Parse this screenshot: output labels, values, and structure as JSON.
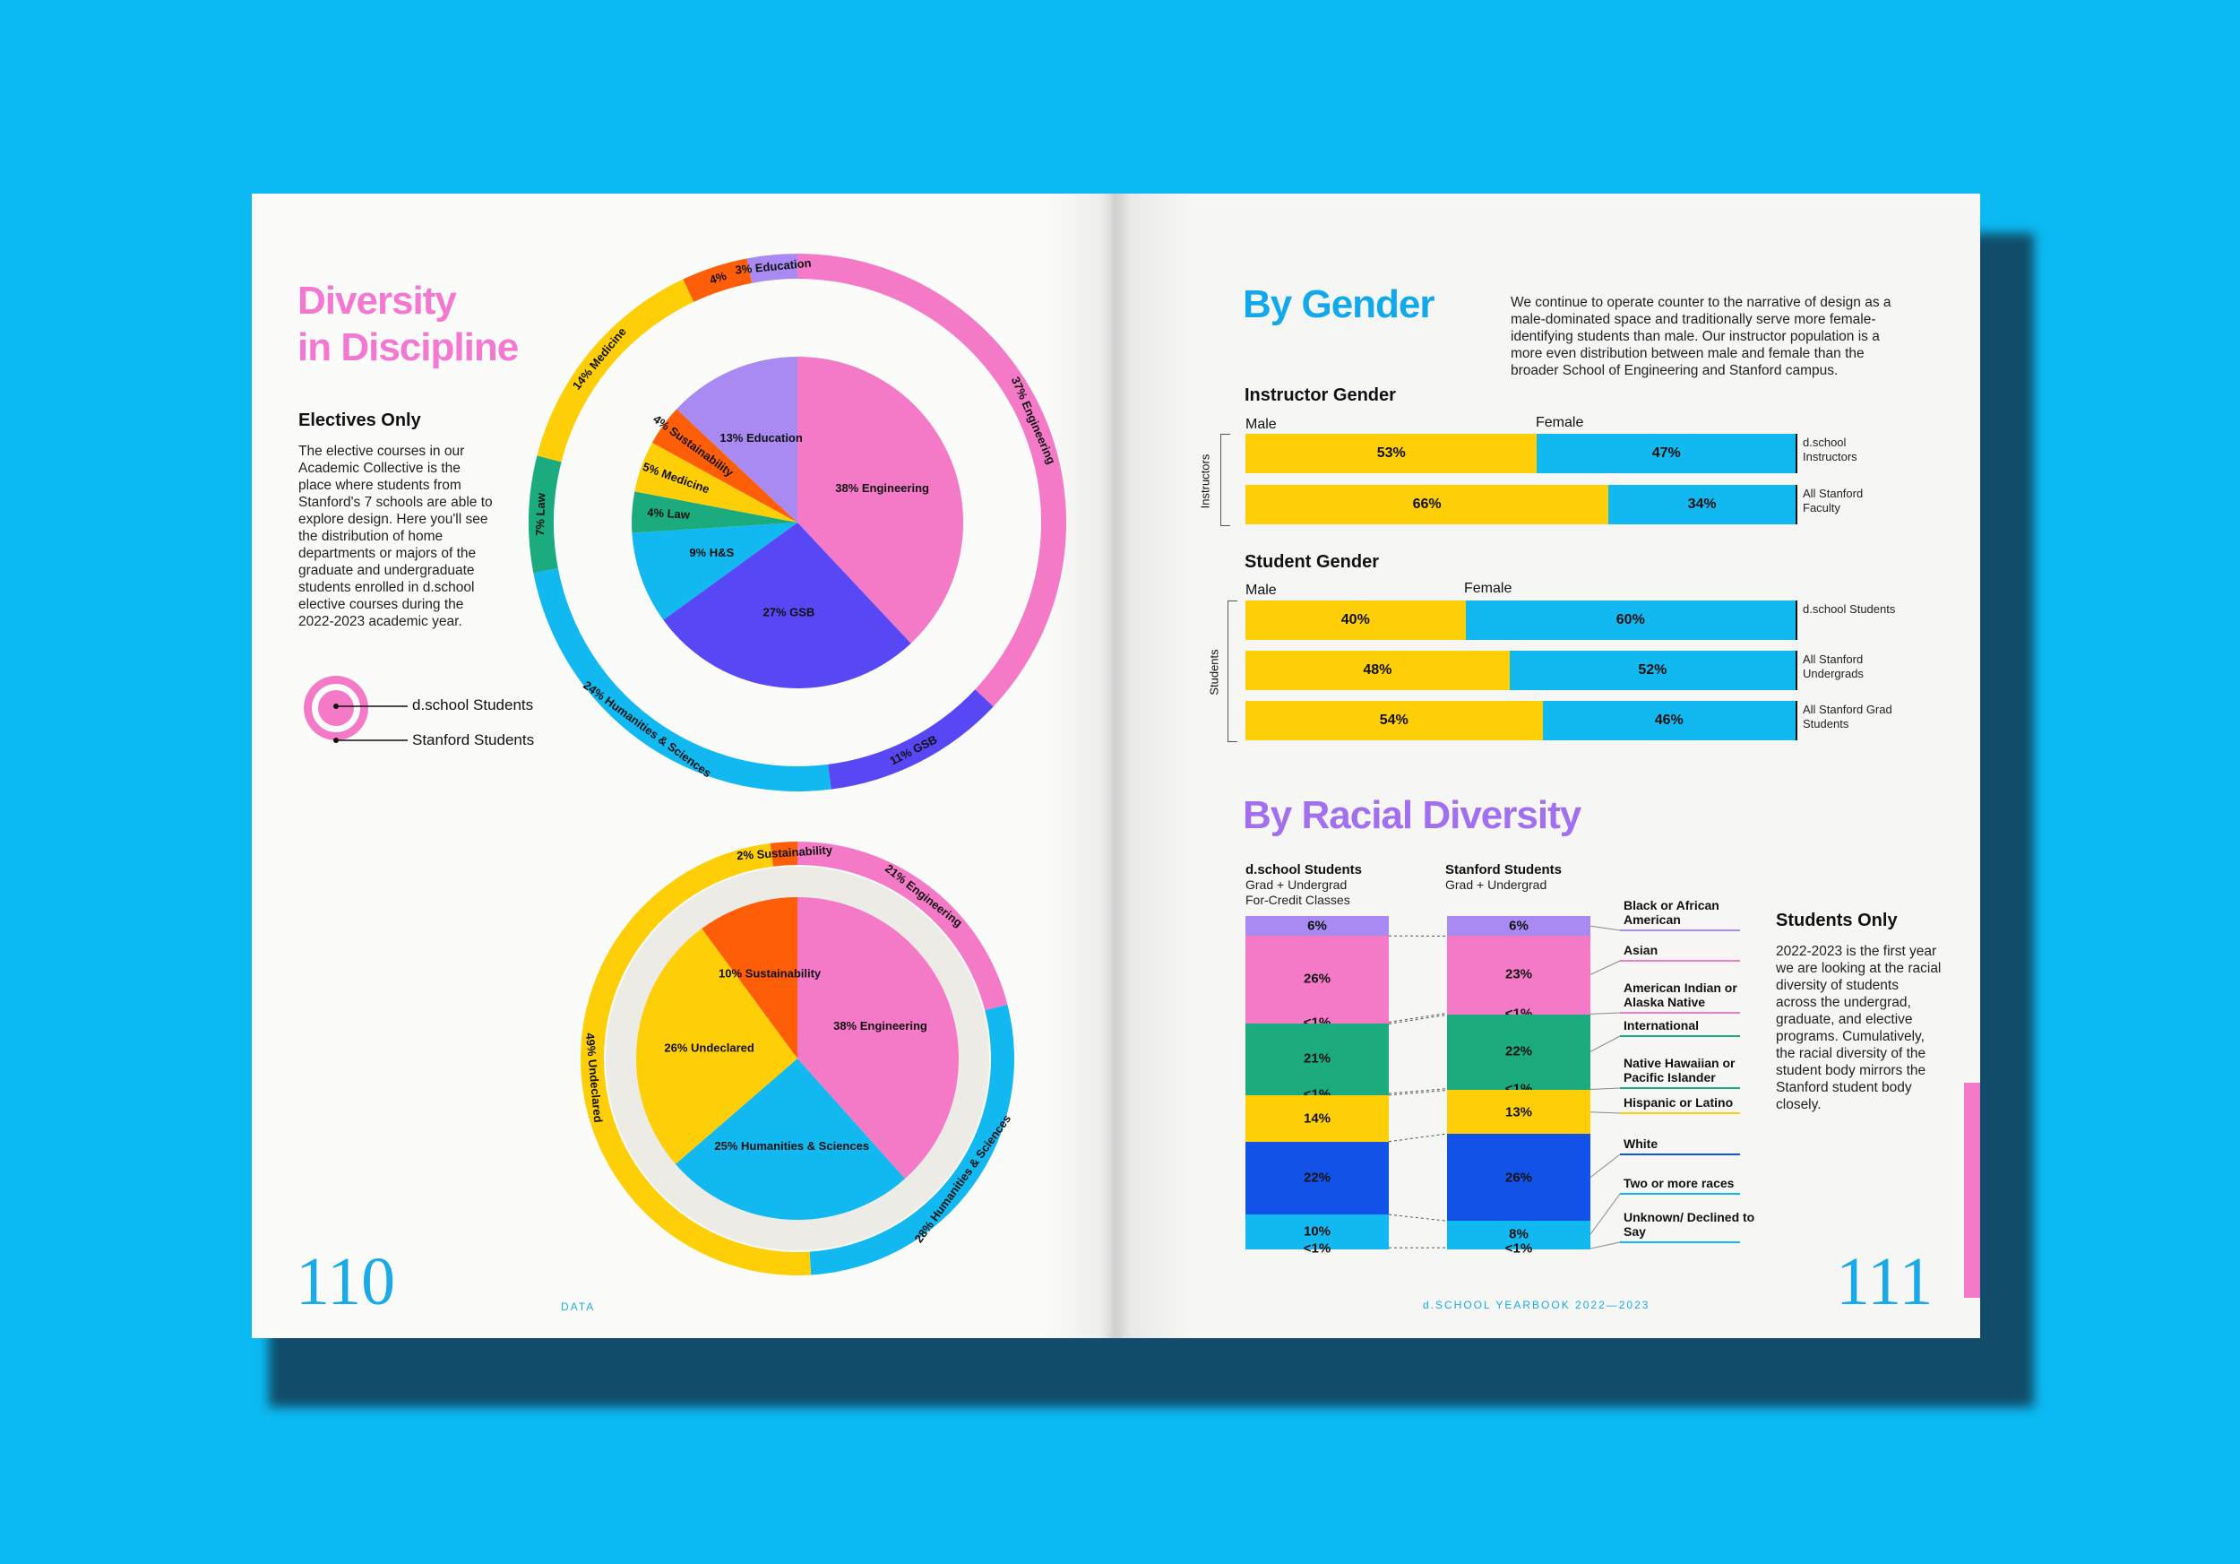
{
  "left_page": {
    "title_line1": "Diversity",
    "title_line2": "in Discipline",
    "subtitle": "Electives Only",
    "description": "The elective courses in our Academic Collective is the place where students from Stanford's 7 schools are able to explore design. Here you'll see the distribution of home departments or majors of the graduate and undergraduate students enrolled in d.school elective courses during the 2022-2023 academic year.",
    "legend_inner": "d.school Students",
    "legend_outer": "Stanford Students",
    "page_number": "110",
    "footer": "DATA"
  },
  "right_page": {
    "gender_title": "By Gender",
    "gender_text": "We continue to operate counter to the narrative of design as a male-dominated space and traditionally serve more female-identifying students than male. Our instructor population is a more even distribution between male and female than the broader School of Engineering and Stanford campus.",
    "racial_title": "By Racial Diversity",
    "students_only_title": "Students Only",
    "students_only_text": "2022-2023 is the first year we are looking at the racial diversity of students across the undergrad, graduate, and elective programs. Cumulatively, the racial diversity of the student body mirrors the Stanford student body closely.",
    "page_number": "111",
    "footer": "d.SCHOOL YEARBOOK 2022—2023"
  },
  "colors": {
    "pink": "#f47ac8",
    "yellow": "#fece06",
    "cyan": "#12b8f0",
    "purple": "#5847f5",
    "lavender": "#a88af2",
    "orange": "#ff5e08",
    "green": "#1bab7f",
    "blue": "#1352e8",
    "magenta_title": "#f478d2",
    "violet_title": "#a26ff0",
    "blue_title": "#12a9ec"
  },
  "chart_data": [
    {
      "type": "pie",
      "name": "electives",
      "inner_label": "d.school Students",
      "outer_label": "Stanford Students",
      "inner": [
        {
          "label": "38% Engineering",
          "value": 38,
          "color": "#f47ac8"
        },
        {
          "label": "27% GSB",
          "value": 27,
          "color": "#5847f5"
        },
        {
          "label": "9% H&S",
          "value": 9,
          "color": "#12b8f0"
        },
        {
          "label": "4% Law",
          "value": 4,
          "color": "#1bab7f"
        },
        {
          "label": "5% Medicine",
          "value": 5,
          "color": "#fece06"
        },
        {
          "label": "4% Sustainability",
          "value": 4,
          "color": "#ff5e08"
        },
        {
          "label": "13% Education",
          "value": 13,
          "color": "#a88af2"
        }
      ],
      "outer": [
        {
          "label": "37% Engineering",
          "value": 37,
          "color": "#f47ac8"
        },
        {
          "label": "11% GSB",
          "value": 11,
          "color": "#5847f5"
        },
        {
          "label": "24% Humanities & Sciences",
          "value": 24,
          "color": "#12b8f0"
        },
        {
          "label": "7% Law",
          "value": 7,
          "color": "#1bab7f"
        },
        {
          "label": "14% Medicine",
          "value": 14,
          "color": "#fece06"
        },
        {
          "label": "4%",
          "value": 4,
          "color": "#ff5e08"
        },
        {
          "label": "3% Education",
          "value": 3,
          "color": "#a88af2"
        }
      ]
    },
    {
      "type": "pie",
      "name": "undergrad",
      "inner": [
        {
          "label": "38% Engineering",
          "value": 38,
          "color": "#f47ac8"
        },
        {
          "label": "25% Humanities & Sciences",
          "value": 25,
          "color": "#12b8f0"
        },
        {
          "label": "26% Undeclared",
          "value": 26,
          "color": "#fece06"
        },
        {
          "label": "10% Sustainability",
          "value": 10,
          "color": "#ff5e08"
        }
      ],
      "outer": [
        {
          "label": "21% Engineering",
          "value": 21,
          "color": "#f47ac8"
        },
        {
          "label": "28% Humanities & Sciences",
          "value": 28,
          "color": "#12b8f0"
        },
        {
          "label": "49% Undeclared",
          "value": 49,
          "color": "#fece06"
        },
        {
          "label": "2% Sustainability",
          "value": 2,
          "color": "#ff5e08"
        }
      ]
    },
    {
      "type": "bar",
      "name": "instructor_gender",
      "title": "Instructor Gender",
      "axis_label": "Instructors",
      "series_names": [
        "Male",
        "Female"
      ],
      "rows": [
        {
          "label": "d.school Instructors",
          "male": 53,
          "female": 47,
          "male_text": "53%",
          "female_text": "47%"
        },
        {
          "label": "All Stanford Faculty",
          "male": 66,
          "female": 34,
          "male_text": "66%",
          "female_text": "34%"
        }
      ]
    },
    {
      "type": "bar",
      "name": "student_gender",
      "title": "Student Gender",
      "axis_label": "Students",
      "series_names": [
        "Male",
        "Female"
      ],
      "rows": [
        {
          "label": "d.school Students",
          "male": 40,
          "female": 60,
          "male_text": "40%",
          "female_text": "60%"
        },
        {
          "label": "All Stanford Undergrads",
          "male": 48,
          "female": 52,
          "male_text": "48%",
          "female_text": "52%"
        },
        {
          "label": "All Stanford Grad Students",
          "male": 54,
          "female": 46,
          "male_text": "54%",
          "female_text": "46%"
        }
      ]
    },
    {
      "type": "bar",
      "name": "racial_diversity",
      "columns": [
        {
          "title": "d.school Students",
          "sub1": "Grad + Undergrad",
          "sub2": "For-Credit Classes"
        },
        {
          "title": "Stanford Students",
          "sub1": "Grad + Undergrad",
          "sub2": ""
        }
      ],
      "categories": [
        {
          "label": "Black or African American",
          "color": "#a88af2",
          "dschool": 6,
          "stanford": 6,
          "d_text": "6%",
          "s_text": "6%"
        },
        {
          "label": "Asian",
          "color": "#f47ac8",
          "dschool": 26,
          "stanford": 23,
          "d_text": "26%",
          "s_text": "23%"
        },
        {
          "label": "American Indian or Alaska Native",
          "color": "#f47ac8",
          "dschool": 0.5,
          "stanford": 0.5,
          "d_text": "<1%",
          "s_text": "<1%"
        },
        {
          "label": "International",
          "color": "#1bab7f",
          "dschool": 21,
          "stanford": 22,
          "d_text": "21%",
          "s_text": "22%"
        },
        {
          "label": "Native Hawaiian or Pacific Islander",
          "color": "#1bab7f",
          "dschool": 0.5,
          "stanford": 0.5,
          "d_text": "<1%",
          "s_text": "<1%"
        },
        {
          "label": "Hispanic or Latino",
          "color": "#fece06",
          "dschool": 14,
          "stanford": 13,
          "d_text": "14%",
          "s_text": "13%"
        },
        {
          "label": "White",
          "color": "#1352e8",
          "dschool": 22,
          "stanford": 26,
          "d_text": "22%",
          "s_text": "26%"
        },
        {
          "label": "Two or more races",
          "color": "#12b8f0",
          "dschool": 10,
          "stanford": 8,
          "d_text": "10%",
          "s_text": "8%"
        },
        {
          "label": "Unknown/ Declined to Say",
          "color": "#12b8f0",
          "dschool": 0.5,
          "stanford": 0.5,
          "d_text": "<1%",
          "s_text": "<1%"
        }
      ]
    }
  ]
}
